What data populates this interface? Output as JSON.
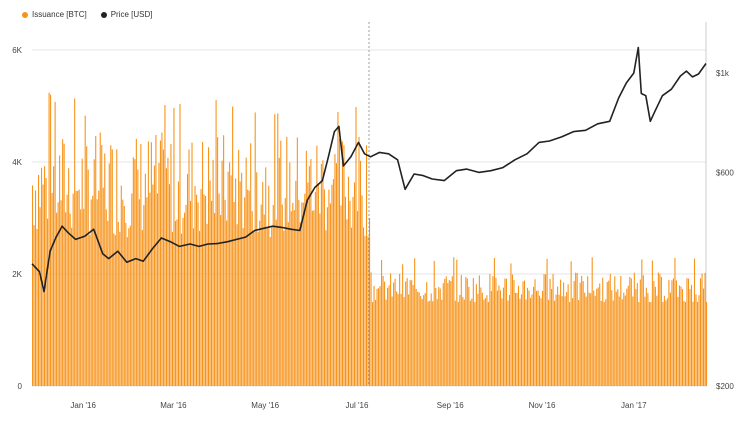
{
  "legend": {
    "issuance_label": "Issuance [BTC]",
    "price_label": "Price [USD]"
  },
  "colors": {
    "issuance": "#f7931a",
    "price": "#222222",
    "grid": "#e6e6e6",
    "axis_text": "#444444"
  },
  "chart_data": {
    "type": "bar",
    "title": "",
    "x_range": [
      "2015-11-28",
      "2017-02-18"
    ],
    "x_ticks": [
      {
        "label": "Jan '16",
        "date": "2016-01-01"
      },
      {
        "label": "Mar '16",
        "date": "2016-03-01"
      },
      {
        "label": "May '16",
        "date": "2016-05-01"
      },
      {
        "label": "Jul '16",
        "date": "2016-07-01"
      },
      {
        "label": "Sep '16",
        "date": "2016-09-01"
      },
      {
        "label": "Nov '16",
        "date": "2016-11-01"
      },
      {
        "label": "Jan '17",
        "date": "2017-01-01"
      }
    ],
    "left_axis": {
      "ylim": [
        0,
        6500
      ],
      "ticks": [
        0,
        2000,
        4000,
        6000
      ],
      "tick_labels": [
        "0",
        "2K",
        "4K",
        "6K"
      ]
    },
    "right_axis": {
      "scale": "log",
      "ylim": [
        200,
        1300
      ],
      "ticks": [
        200,
        600,
        1000
      ],
      "tick_labels": [
        "$200",
        "$600",
        "$1k"
      ]
    },
    "halving_marker_date": "2016-07-09",
    "series": [
      {
        "name": "Issuance [BTC]",
        "axis": "left",
        "type": "bar",
        "segments": [
          {
            "from": "2015-11-28",
            "to": "2016-07-09",
            "mean": 3600,
            "min": 2600,
            "max": 5300
          },
          {
            "from": "2016-07-10",
            "to": "2017-02-18",
            "mean": 1750,
            "min": 1500,
            "max": 2300
          }
        ]
      },
      {
        "name": "Price [USD]",
        "axis": "right",
        "type": "line",
        "points": [
          [
            "2015-11-28",
            375
          ],
          [
            "2015-12-03",
            360
          ],
          [
            "2015-12-06",
            325
          ],
          [
            "2015-12-10",
            400
          ],
          [
            "2015-12-14",
            430
          ],
          [
            "2015-12-18",
            455
          ],
          [
            "2015-12-22",
            440
          ],
          [
            "2015-12-27",
            425
          ],
          [
            "2016-01-02",
            432
          ],
          [
            "2016-01-08",
            448
          ],
          [
            "2016-01-14",
            395
          ],
          [
            "2016-01-18",
            385
          ],
          [
            "2016-01-24",
            400
          ],
          [
            "2016-01-30",
            378
          ],
          [
            "2016-02-05",
            385
          ],
          [
            "2016-02-10",
            380
          ],
          [
            "2016-02-16",
            405
          ],
          [
            "2016-02-22",
            428
          ],
          [
            "2016-02-28",
            420
          ],
          [
            "2016-03-05",
            410
          ],
          [
            "2016-03-12",
            415
          ],
          [
            "2016-03-18",
            410
          ],
          [
            "2016-03-24",
            415
          ],
          [
            "2016-03-30",
            416
          ],
          [
            "2016-04-06",
            420
          ],
          [
            "2016-04-12",
            425
          ],
          [
            "2016-04-18",
            430
          ],
          [
            "2016-04-24",
            445
          ],
          [
            "2016-04-30",
            450
          ],
          [
            "2016-05-06",
            455
          ],
          [
            "2016-05-12",
            452
          ],
          [
            "2016-05-18",
            448
          ],
          [
            "2016-05-24",
            445
          ],
          [
            "2016-05-29",
            520
          ],
          [
            "2016-06-03",
            555
          ],
          [
            "2016-06-08",
            575
          ],
          [
            "2016-06-12",
            650
          ],
          [
            "2016-06-16",
            740
          ],
          [
            "2016-06-19",
            760
          ],
          [
            "2016-06-22",
            620
          ],
          [
            "2016-06-27",
            650
          ],
          [
            "2016-07-02",
            700
          ],
          [
            "2016-07-06",
            660
          ],
          [
            "2016-07-10",
            650
          ],
          [
            "2016-07-16",
            665
          ],
          [
            "2016-07-22",
            660
          ],
          [
            "2016-07-28",
            640
          ],
          [
            "2016-08-02",
            550
          ],
          [
            "2016-08-08",
            595
          ],
          [
            "2016-08-14",
            590
          ],
          [
            "2016-08-20",
            580
          ],
          [
            "2016-08-28",
            575
          ],
          [
            "2016-09-05",
            605
          ],
          [
            "2016-09-12",
            610
          ],
          [
            "2016-09-20",
            600
          ],
          [
            "2016-09-28",
            605
          ],
          [
            "2016-10-06",
            615
          ],
          [
            "2016-10-14",
            640
          ],
          [
            "2016-10-22",
            660
          ],
          [
            "2016-10-30",
            700
          ],
          [
            "2016-11-06",
            705
          ],
          [
            "2016-11-14",
            720
          ],
          [
            "2016-11-22",
            740
          ],
          [
            "2016-11-30",
            745
          ],
          [
            "2016-12-08",
            770
          ],
          [
            "2016-12-16",
            780
          ],
          [
            "2016-12-22",
            880
          ],
          [
            "2016-12-27",
            950
          ],
          [
            "2017-01-01",
            1000
          ],
          [
            "2017-01-04",
            1140
          ],
          [
            "2017-01-06",
            900
          ],
          [
            "2017-01-09",
            890
          ],
          [
            "2017-01-12",
            780
          ],
          [
            "2017-01-15",
            820
          ],
          [
            "2017-01-20",
            890
          ],
          [
            "2017-01-26",
            920
          ],
          [
            "2017-02-01",
            985
          ],
          [
            "2017-02-05",
            1010
          ],
          [
            "2017-02-09",
            980
          ],
          [
            "2017-02-13",
            995
          ],
          [
            "2017-02-18",
            1050
          ]
        ]
      }
    ]
  }
}
